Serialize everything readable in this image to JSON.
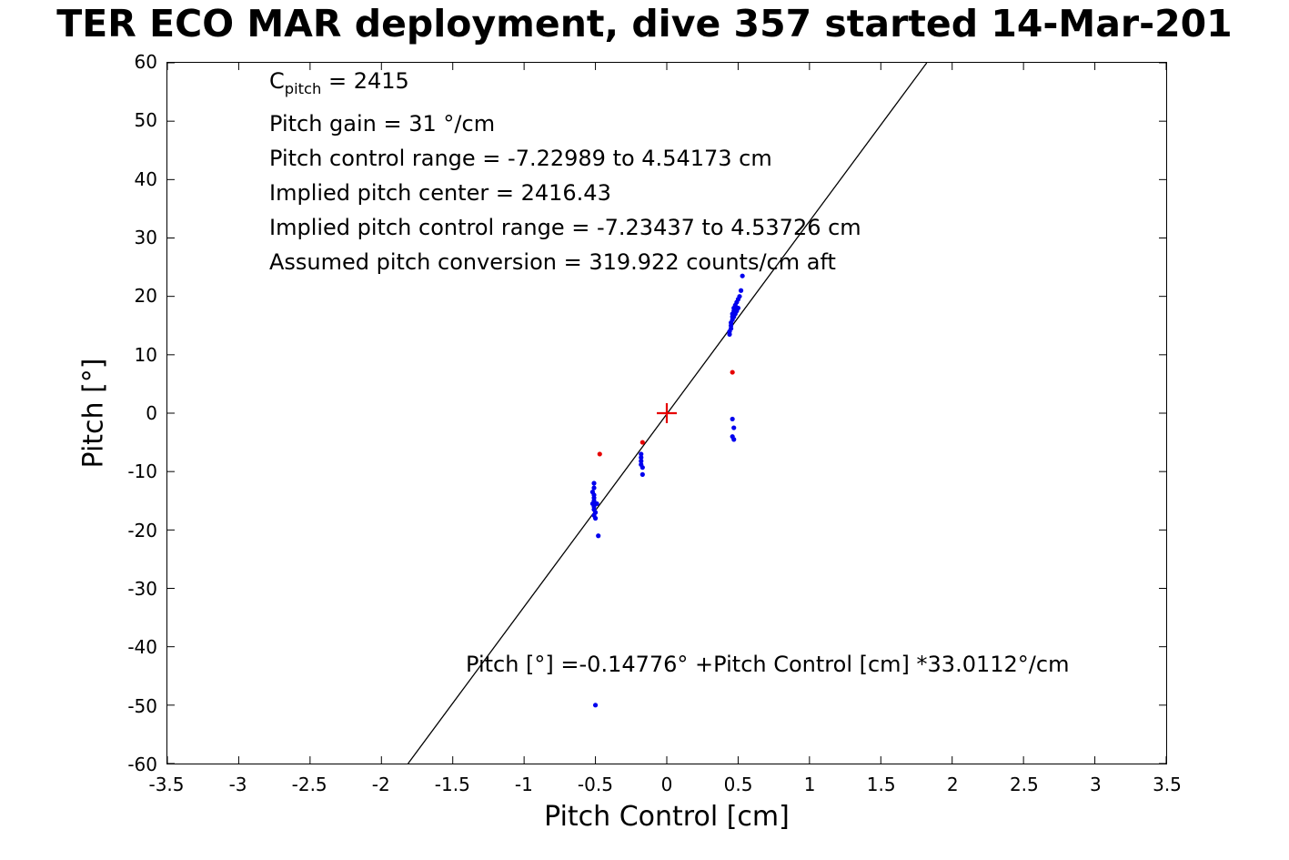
{
  "title": "TER ECO MAR deployment, dive 357 started 14-Mar-201",
  "annotations": {
    "c_base": "C",
    "c_sub": "pitch",
    "c_rest": " = 2415",
    "lines": [
      "Pitch gain = 31 °/cm",
      "Pitch control range = -7.22989 to 4.54173 cm",
      "Implied pitch center = 2416.43",
      "Implied pitch control range = -7.23437 to 4.53726 cm",
      "Assumed pitch conversion = 319.922 counts/cm aft"
    ],
    "fit_equation": "Pitch [°] =-0.14776° +Pitch Control [cm] *33.0112°/cm"
  },
  "chart_data": {
    "type": "scatter",
    "title": "TER ECO MAR deployment, dive 357 started 14-Mar-201",
    "xlabel": "Pitch Control [cm]",
    "ylabel": "Pitch [°]",
    "xlim": [
      -3.5,
      3.5
    ],
    "ylim": [
      -60,
      60
    ],
    "xticks": [
      -3.5,
      -3,
      -2.5,
      -2,
      -1.5,
      -1,
      -0.5,
      0,
      0.5,
      1,
      1.5,
      2,
      2.5,
      3,
      3.5
    ],
    "yticks": [
      -60,
      -50,
      -40,
      -30,
      -20,
      -10,
      0,
      10,
      20,
      30,
      40,
      50,
      60
    ],
    "grid": false,
    "legend": "none",
    "fit_line": {
      "intercept": -0.14776,
      "slope": 33.0112,
      "color": "#000000",
      "equation": "Pitch [°] =-0.14776° +Pitch Control [cm] *33.0112°/cm"
    },
    "series": [
      {
        "name": "pitch-data",
        "color": "#0000ee",
        "marker": "dot",
        "points": [
          [
            -0.51,
            -12
          ],
          [
            -0.51,
            -12.8
          ],
          [
            -0.52,
            -13.5
          ],
          [
            -0.51,
            -14
          ],
          [
            -0.51,
            -14.5
          ],
          [
            -0.51,
            -15
          ],
          [
            -0.52,
            -15.5
          ],
          [
            -0.51,
            -16
          ],
          [
            -0.51,
            -16.5
          ],
          [
            -0.5,
            -17
          ],
          [
            -0.51,
            -17.5
          ],
          [
            -0.5,
            -18
          ],
          [
            -0.49,
            -15.5
          ],
          [
            -0.48,
            -21
          ],
          [
            -0.5,
            -50
          ],
          [
            -0.18,
            -7
          ],
          [
            -0.18,
            -7.6
          ],
          [
            -0.18,
            -8.2
          ],
          [
            -0.18,
            -8.8
          ],
          [
            -0.17,
            -9.3
          ],
          [
            -0.17,
            -10.5
          ],
          [
            0.44,
            13.5
          ],
          [
            0.44,
            14
          ],
          [
            0.45,
            14.5
          ],
          [
            0.45,
            15
          ],
          [
            0.45,
            15.5
          ],
          [
            0.46,
            16
          ],
          [
            0.46,
            16.5
          ],
          [
            0.46,
            17
          ],
          [
            0.47,
            16.5
          ],
          [
            0.47,
            17.5
          ],
          [
            0.47,
            18
          ],
          [
            0.48,
            17
          ],
          [
            0.48,
            18
          ],
          [
            0.48,
            18.5
          ],
          [
            0.49,
            17.5
          ],
          [
            0.49,
            19
          ],
          [
            0.5,
            18
          ],
          [
            0.5,
            19.5
          ],
          [
            0.51,
            20
          ],
          [
            0.52,
            21
          ],
          [
            0.53,
            23.5
          ],
          [
            0.46,
            -1
          ],
          [
            0.47,
            -2.5
          ],
          [
            0.46,
            -4
          ],
          [
            0.47,
            -4.5
          ]
        ]
      },
      {
        "name": "flagged-points",
        "color": "#e60000",
        "marker": "dot",
        "points": [
          [
            -0.47,
            -7
          ],
          [
            -0.17,
            -5
          ],
          [
            0.46,
            7
          ]
        ]
      },
      {
        "name": "pitch-center-marker",
        "color": "#e60000",
        "marker": "plus",
        "points": [
          [
            0,
            0
          ]
        ]
      }
    ]
  }
}
